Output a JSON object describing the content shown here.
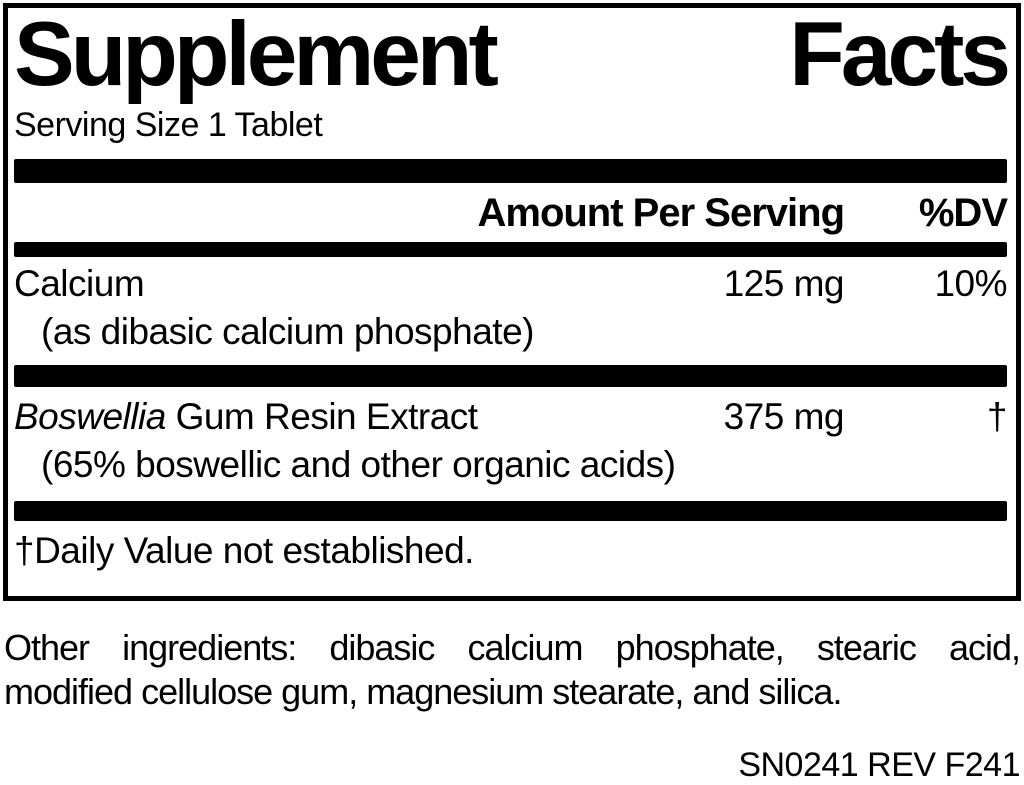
{
  "colors": {
    "ink": "#000000",
    "paper": "#ffffff"
  },
  "panel": {
    "title": {
      "word1": "Supplement",
      "word2": "Facts"
    },
    "serving_size": "Serving Size 1 Tablet",
    "header": {
      "amount": "Amount Per Serving",
      "dv": "%DV"
    },
    "rows": [
      {
        "name": "Calcium",
        "detail": "(as dibasic calcium phosphate)",
        "amount": "125 mg",
        "dv": "10%"
      },
      {
        "name_italic": "Boswellia",
        "name_rest": " Gum Resin Extract",
        "detail": "(65% boswellic and other organic acids)",
        "amount": "375 mg",
        "dv": "†"
      }
    ],
    "footnote": "†Daily Value not established."
  },
  "other_ingredients": {
    "line1": "Other ingredients: dibasic calcium phosphate, stearic acid,",
    "line2": "modified cellulose gum, magnesium stearate, and silica."
  },
  "rev_code": "SN0241 REV F241"
}
